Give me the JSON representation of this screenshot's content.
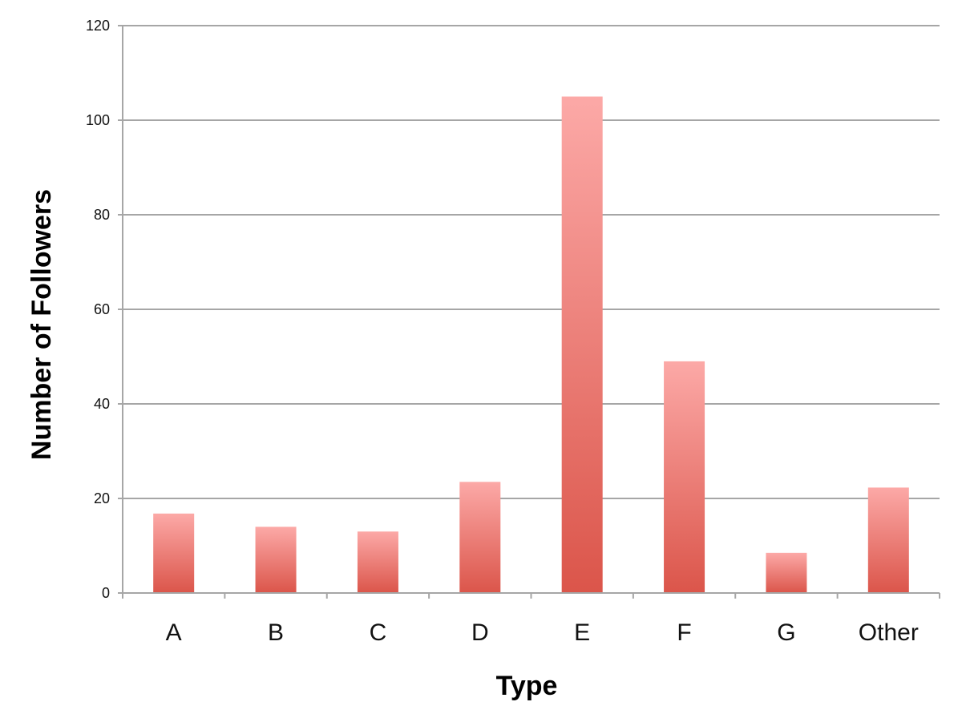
{
  "chart_data": {
    "type": "bar",
    "title": "",
    "xlabel": "Type",
    "ylabel": "Number of Followers",
    "categories": [
      "A",
      "B",
      "C",
      "D",
      "E",
      "F",
      "G",
      "Other"
    ],
    "values": [
      16.8,
      14,
      13,
      23.5,
      105,
      49,
      8.5,
      22.3
    ],
    "ylim": [
      0,
      120
    ],
    "yticks": [
      "0",
      "20",
      "40",
      "60",
      "80",
      "100",
      "120"
    ],
    "grid": true,
    "legend": "none",
    "colors": {
      "bar_top": "#fca9a7",
      "bar_bottom": "#db554a",
      "gridline": "#a6a6a6",
      "axis": "#a6a6a6"
    }
  }
}
